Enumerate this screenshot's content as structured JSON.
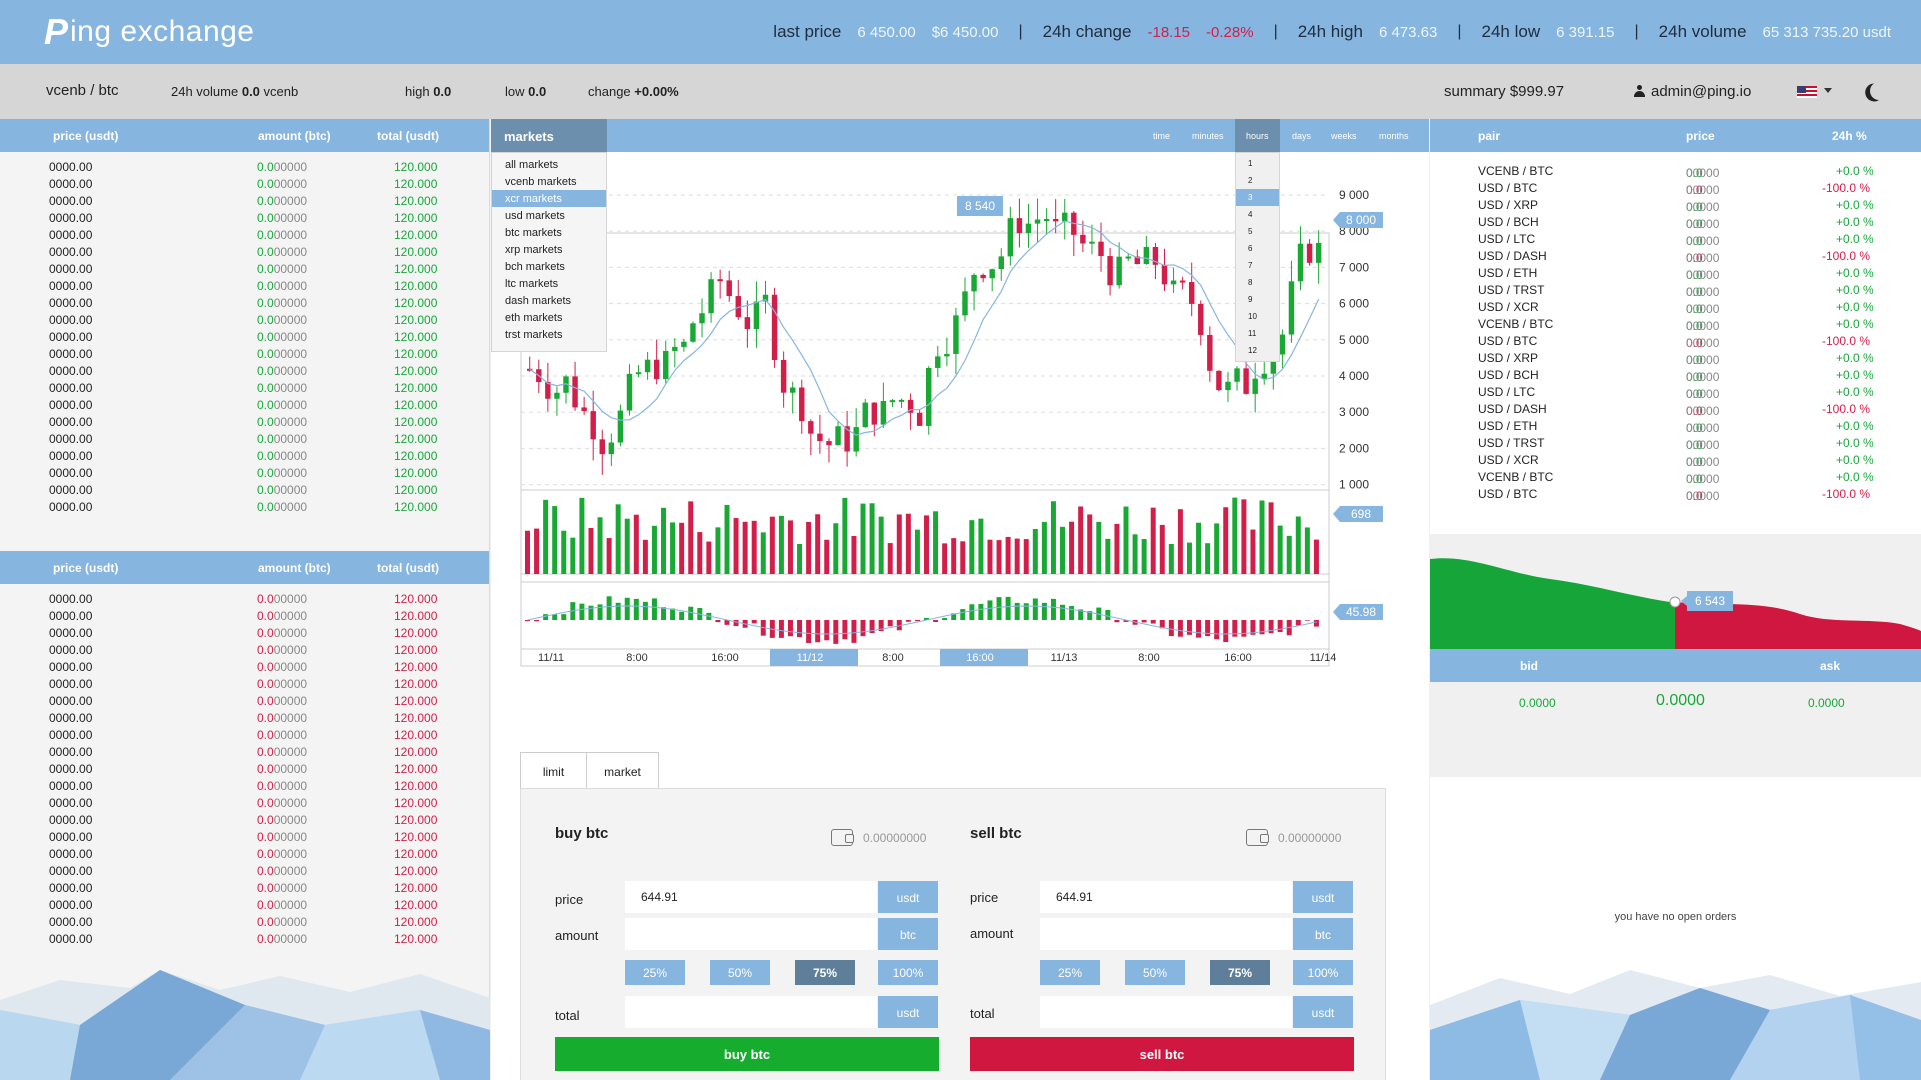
{
  "brand": {
    "mark": "P",
    "name": "ing exchange"
  },
  "ticker": {
    "last_price_label": "last price",
    "last_price": "6 450.00",
    "last_price_usd": "$6 450.00",
    "change_label": "24h change",
    "change_abs": "-18.15",
    "change_pct": "-0.28%",
    "high_label": "24h high",
    "high": "6 473.63",
    "low_label": "24h low",
    "low": "6 391.15",
    "volume_label": "24h volume",
    "volume": "65 313 735.20 usdt",
    "separator": "|"
  },
  "subbar": {
    "pair": "vcenb / btc",
    "vol_label": "24h volume",
    "vol_value": "0.0",
    "vol_unit": "vcenb",
    "high_label": "high",
    "high_value": "0.0",
    "low_label": "low",
    "low_value": "0.0",
    "change_label": "change",
    "change_value": "+0.00%",
    "summary": "summary $999.97",
    "user": "admin@ping.io",
    "flag_icon": "us-flag-icon"
  },
  "orderbook": {
    "headers": {
      "price": "price (usdt)",
      "amount": "amount (btc)",
      "total": "total (usdt)"
    },
    "row": {
      "price": "0000.00",
      "amount_lead": "0.0",
      "amount_rest": "00000",
      "total": "120.000"
    },
    "asks_count": 21,
    "bids_count": 21
  },
  "markets": {
    "button": "markets",
    "items": [
      "all markets",
      "vcenb markets",
      "xcr markets",
      "usd markets",
      "btc markets",
      "xrp markets",
      "bch markets",
      "ltc markets",
      "dash markets",
      "eth markets",
      "trst markets"
    ],
    "selected": "xcr markets"
  },
  "timeframes": {
    "tabs": [
      "time",
      "minutes",
      "hours",
      "days",
      "weeks",
      "months"
    ],
    "active": "hours",
    "hours": [
      "1",
      "2",
      "3",
      "4",
      "5",
      "6",
      "7",
      "8",
      "9",
      "10",
      "11",
      "12"
    ],
    "selected_hour": "3"
  },
  "chart_data": {
    "type": "candlestick",
    "y_ticks": [
      "9 000",
      "8 000",
      "7 000",
      "6 000",
      "5 000",
      "4 000",
      "3 000",
      "2 000",
      "1 000"
    ],
    "ylim": [
      0,
      10000
    ],
    "x_ticks": [
      "11/11",
      "8:00",
      "16:00",
      "11/12",
      "8:00",
      "16:00",
      "11/13",
      "8:00",
      "16:00",
      "11/14"
    ],
    "highlighted_x_ticks": [
      "11/12",
      "16:00"
    ],
    "marker_label": "8 540",
    "current_price_label": "8 000",
    "volume_label": "698",
    "oscillator_label": "45.98",
    "colors": {
      "up": "#1aa834",
      "down": "#d21f4a",
      "ma": "#86b5df"
    }
  },
  "trade": {
    "tabs": [
      "limit",
      "market"
    ],
    "active_tab": "limit",
    "buy": {
      "title": "buy btc",
      "balance": "0.00000000",
      "price_label": "price",
      "price": "644.91",
      "price_unit": "usdt",
      "amount_label": "amount",
      "amount_unit": "btc",
      "total_label": "total",
      "total_unit": "usdt",
      "button": "buy btc"
    },
    "sell": {
      "title": "sell btc",
      "balance": "0.00000000",
      "price_label": "price",
      "price": "644.91",
      "price_unit": "usdt",
      "amount_label": "amount",
      "amount_unit": "btc",
      "total_label": "total",
      "total_unit": "usdt",
      "button": "sell btc"
    },
    "percents": [
      "25%",
      "50%",
      "75%",
      "100%"
    ],
    "active_percent": "75%",
    "colors": {
      "buy": "#16ad2e",
      "sell": "#d0173f"
    }
  },
  "pairs": {
    "headers": {
      "pair": "pair",
      "price": "price",
      "change": "24h  %"
    },
    "rows": [
      {
        "pair": "VCENB / BTC",
        "lead": "0.0",
        "rest": "00000",
        "change": "+0.0 %",
        "up": true
      },
      {
        "pair": "USD  / BTC",
        "lead": "0.0",
        "rest": "00000",
        "change": "-100.0 %",
        "up": false
      },
      {
        "pair": "USD  / XRP",
        "lead": "0.0",
        "rest": "00000",
        "change": "+0.0 %",
        "up": true
      },
      {
        "pair": "USD  / BCH",
        "lead": "0.0",
        "rest": "00000",
        "change": "+0.0 %",
        "up": true
      },
      {
        "pair": "USD  / LTC",
        "lead": "0.0",
        "rest": "00000",
        "change": "+0.0 %",
        "up": true
      },
      {
        "pair": "USD  / DASH",
        "lead": "0.0",
        "rest": "00000",
        "change": "-100.0 %",
        "up": false
      },
      {
        "pair": "USD  / ETH",
        "lead": "0.0",
        "rest": "00000",
        "change": "+0.0 %",
        "up": true
      },
      {
        "pair": "USD  / TRST",
        "lead": "0.0",
        "rest": "00000",
        "change": "+0.0 %",
        "up": true
      },
      {
        "pair": "USD  / XCR",
        "lead": "0.0",
        "rest": "00000",
        "change": "+0.0 %",
        "up": true
      },
      {
        "pair": "VCENB / BTC",
        "lead": "0.0",
        "rest": "00000",
        "change": "+0.0 %",
        "up": true
      },
      {
        "pair": "USD  / BTC",
        "lead": "0.0",
        "rest": "00000",
        "change": "-100.0 %",
        "up": false
      },
      {
        "pair": "USD  / XRP",
        "lead": "0.0",
        "rest": "00000",
        "change": "+0.0 %",
        "up": true
      },
      {
        "pair": "USD  / BCH",
        "lead": "0.0",
        "rest": "00000",
        "change": "+0.0 %",
        "up": true
      },
      {
        "pair": "USD  / LTC",
        "lead": "0.0",
        "rest": "00000",
        "change": "+0.0 %",
        "up": true
      },
      {
        "pair": "USD  / DASH",
        "lead": "0.0",
        "rest": "00000",
        "change": "-100.0 %",
        "up": false
      },
      {
        "pair": "USD  / ETH",
        "lead": "0.0",
        "rest": "00000",
        "change": "+0.0 %",
        "up": true
      },
      {
        "pair": "USD  / TRST",
        "lead": "0.0",
        "rest": "00000",
        "change": "+0.0 %",
        "up": true
      },
      {
        "pair": "USD  / XCR",
        "lead": "0.0",
        "rest": "00000",
        "change": "+0.0 %",
        "up": true
      },
      {
        "pair": "VCENB / BTC",
        "lead": "0.0",
        "rest": "00000",
        "change": "+0.0 %",
        "up": true
      },
      {
        "pair": "USD  / BTC",
        "lead": "0.0",
        "rest": "00000",
        "change": "-100.0 %",
        "up": false
      }
    ]
  },
  "depth": {
    "label": "6 543"
  },
  "bidask": {
    "bid_label": "bid",
    "ask_label": "ask",
    "bid": "0.0000",
    "mid": "0.0000",
    "ask": "0.0000"
  },
  "orders": {
    "empty": "you have no open orders"
  }
}
